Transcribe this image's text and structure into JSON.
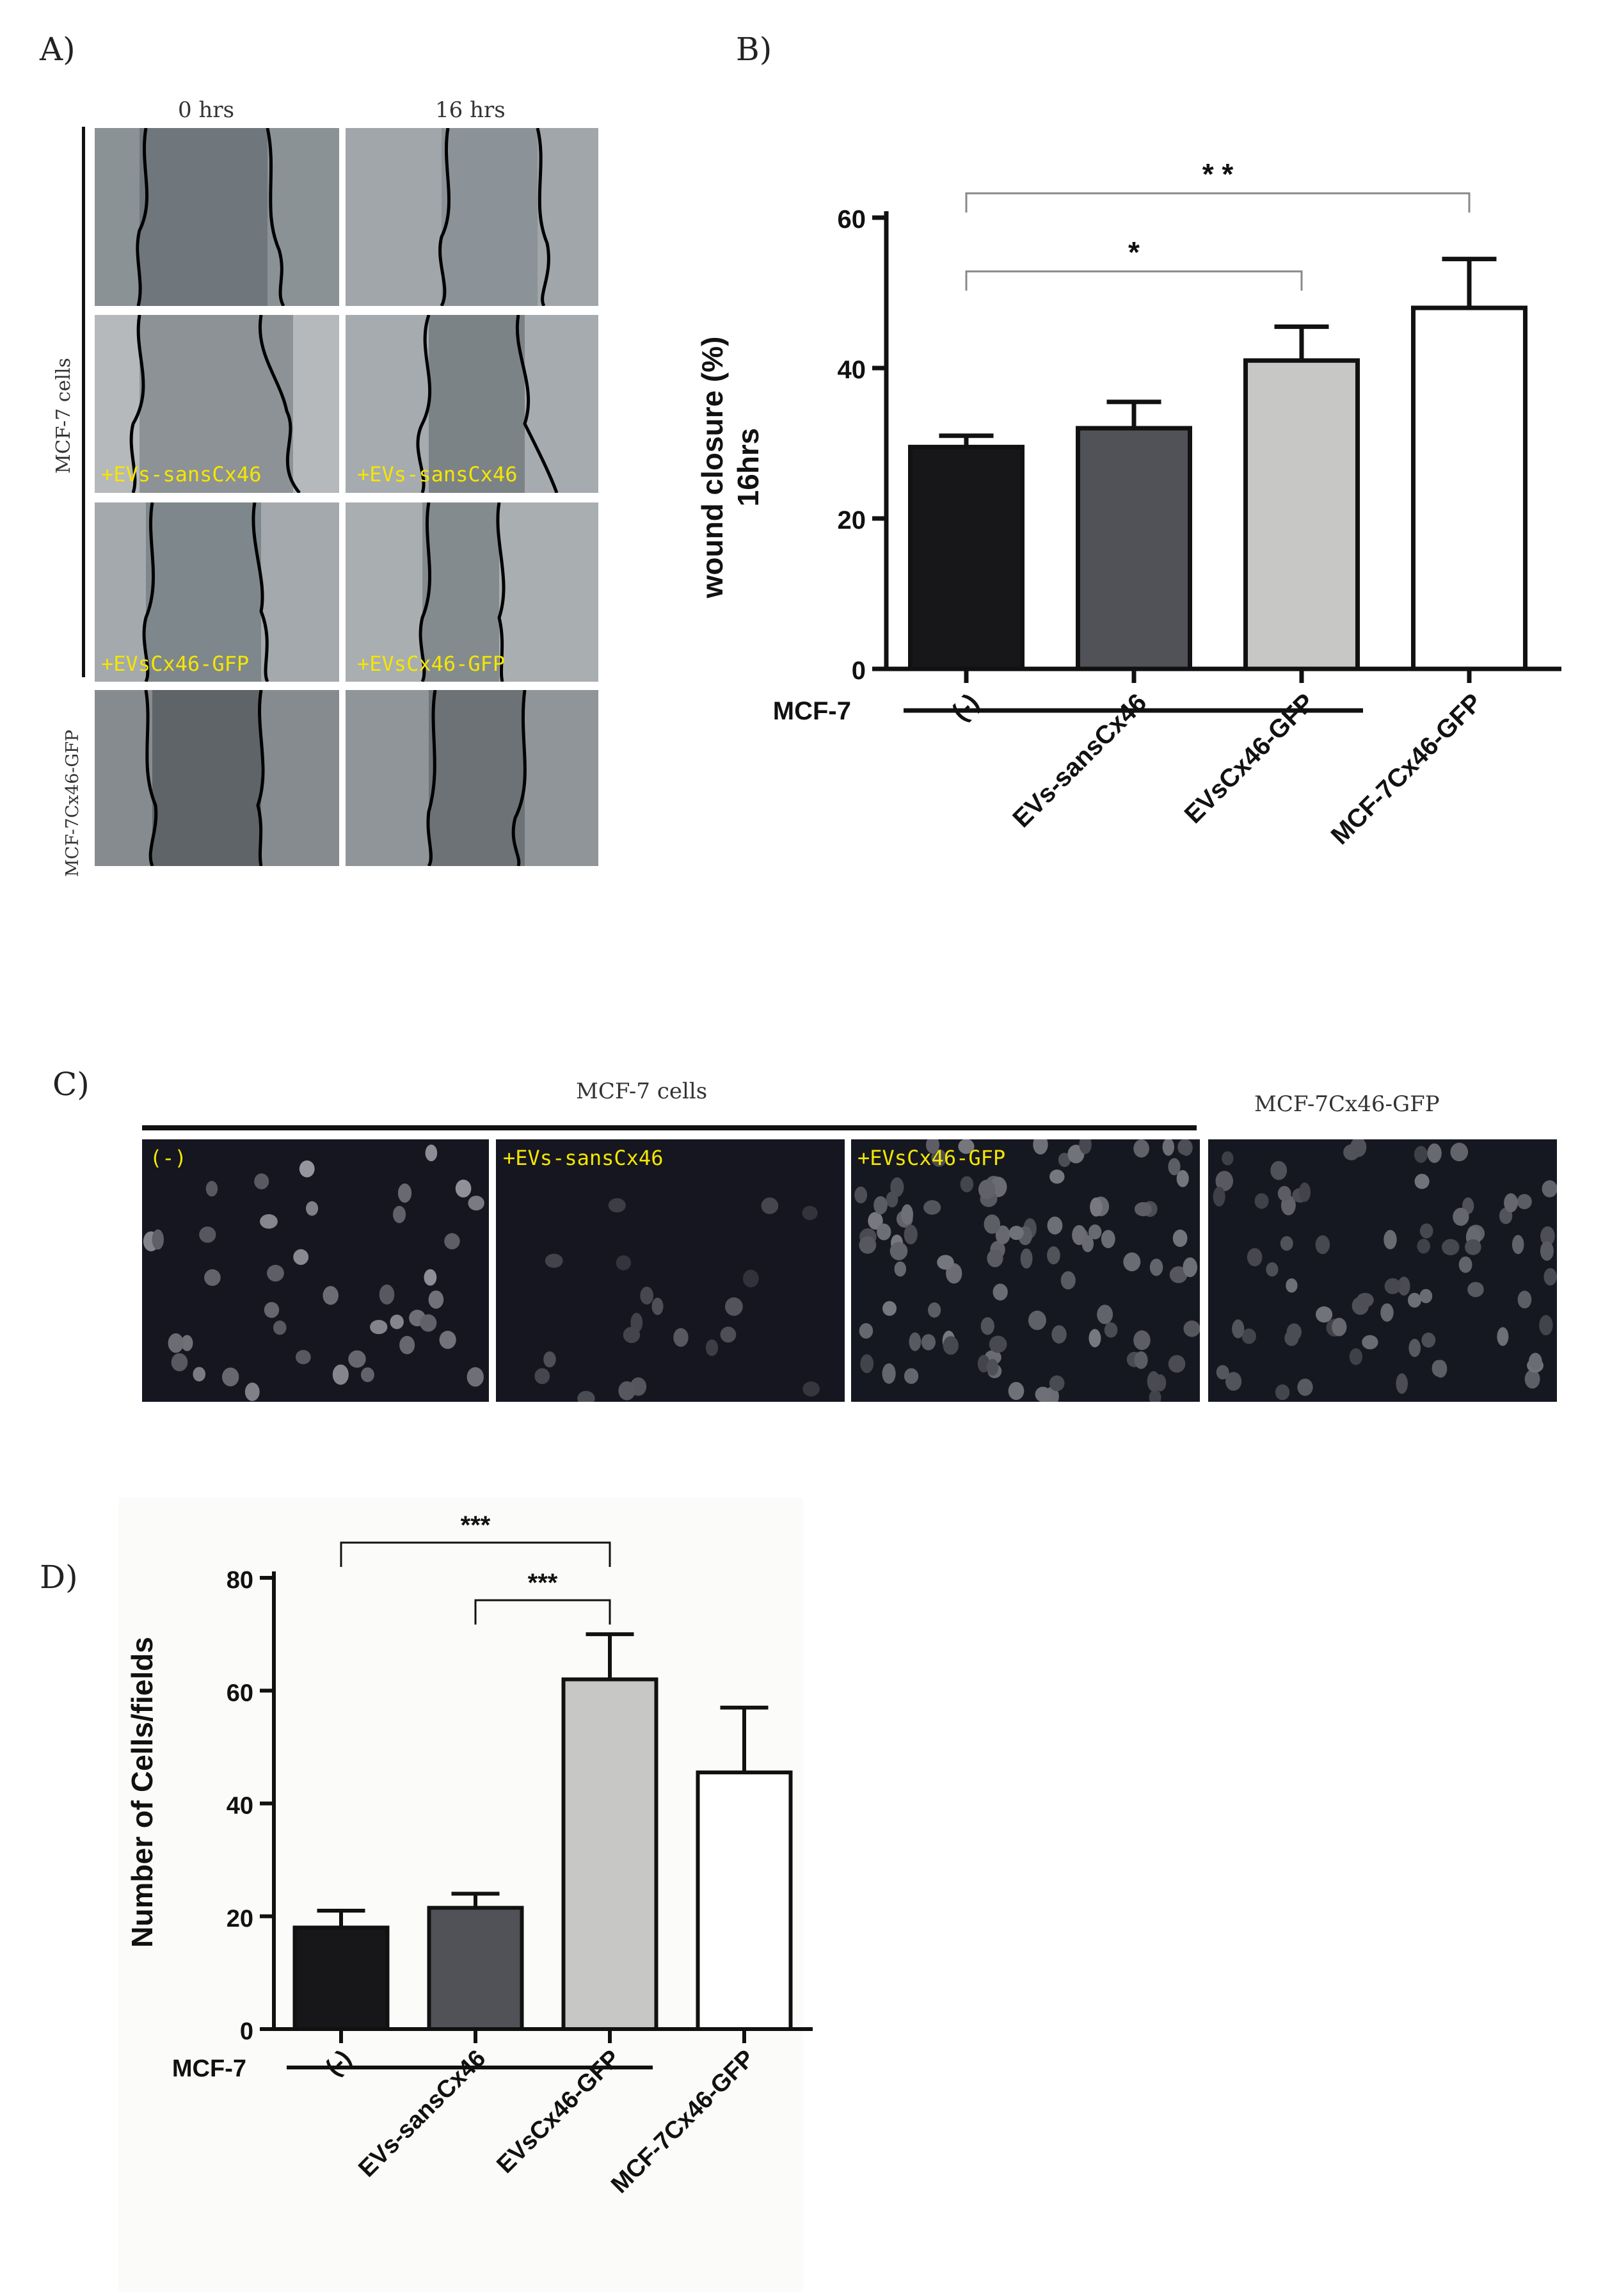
{
  "panel_labels": {
    "a": "A)",
    "b": "B)",
    "c": "C)",
    "d": "D)"
  },
  "panel_a": {
    "col_headers": [
      "0 hrs",
      "16 hrs"
    ],
    "group_label_main": "MCF-7 cells",
    "group_label_bottom": "MCF-7Cx46-GFP",
    "overlay_labels": [
      "+EVs-sansCx46",
      "+EVs-sansCx46",
      "+EVsCx46-GFP",
      "+EVsCx46-GFP"
    ],
    "overlay_color": "#f5e600"
  },
  "panel_c": {
    "header_main": "MCF-7 cells",
    "header_right": "MCF-7Cx46-GFP",
    "overlay_labels": [
      "(-)",
      "+EVs-sansCx46",
      "+EVsCx46-GFP"
    ],
    "overlay_color": "#f5e600"
  },
  "chart_data": [
    {
      "type": "bar",
      "panel": "B",
      "categories": [
        "(-)",
        "EVs-sansCx46",
        "EVsCx46-GFP",
        "MCF-7Cx46-GFP"
      ],
      "values": [
        29.5,
        32,
        41,
        48
      ],
      "errors": [
        1.5,
        3.5,
        4.5,
        6.5
      ],
      "colors": [
        "#17171a",
        "#505257",
        "#c7c7c5",
        "#ffffff"
      ],
      "ylabel": "wound closure (%)\n16hrs",
      "ylim": [
        0,
        60
      ],
      "yticks": [
        0,
        20,
        40,
        60
      ],
      "group_label": "MCF-7",
      "significance": [
        {
          "from": 0,
          "to": 3,
          "label": "* *"
        },
        {
          "from": 0,
          "to": 2,
          "label": "*"
        }
      ]
    },
    {
      "type": "bar",
      "panel": "D",
      "categories": [
        "(-)",
        "EVs-sansCx46",
        "EVsCx46-GFP",
        "MCF-7Cx46-GFP"
      ],
      "values": [
        18,
        21.5,
        62,
        45.5
      ],
      "errors": [
        3,
        2.5,
        8,
        11.5
      ],
      "colors": [
        "#17171a",
        "#505257",
        "#c7c7c5",
        "#ffffff"
      ],
      "ylabel": "Number of Cells/fields",
      "ylim": [
        0,
        80
      ],
      "yticks": [
        0,
        20,
        40,
        60,
        80
      ],
      "group_label": "MCF-7",
      "significance": [
        {
          "from": 0,
          "to": 2,
          "label": "***"
        },
        {
          "from": 1,
          "to": 2,
          "label": "***"
        }
      ]
    }
  ]
}
